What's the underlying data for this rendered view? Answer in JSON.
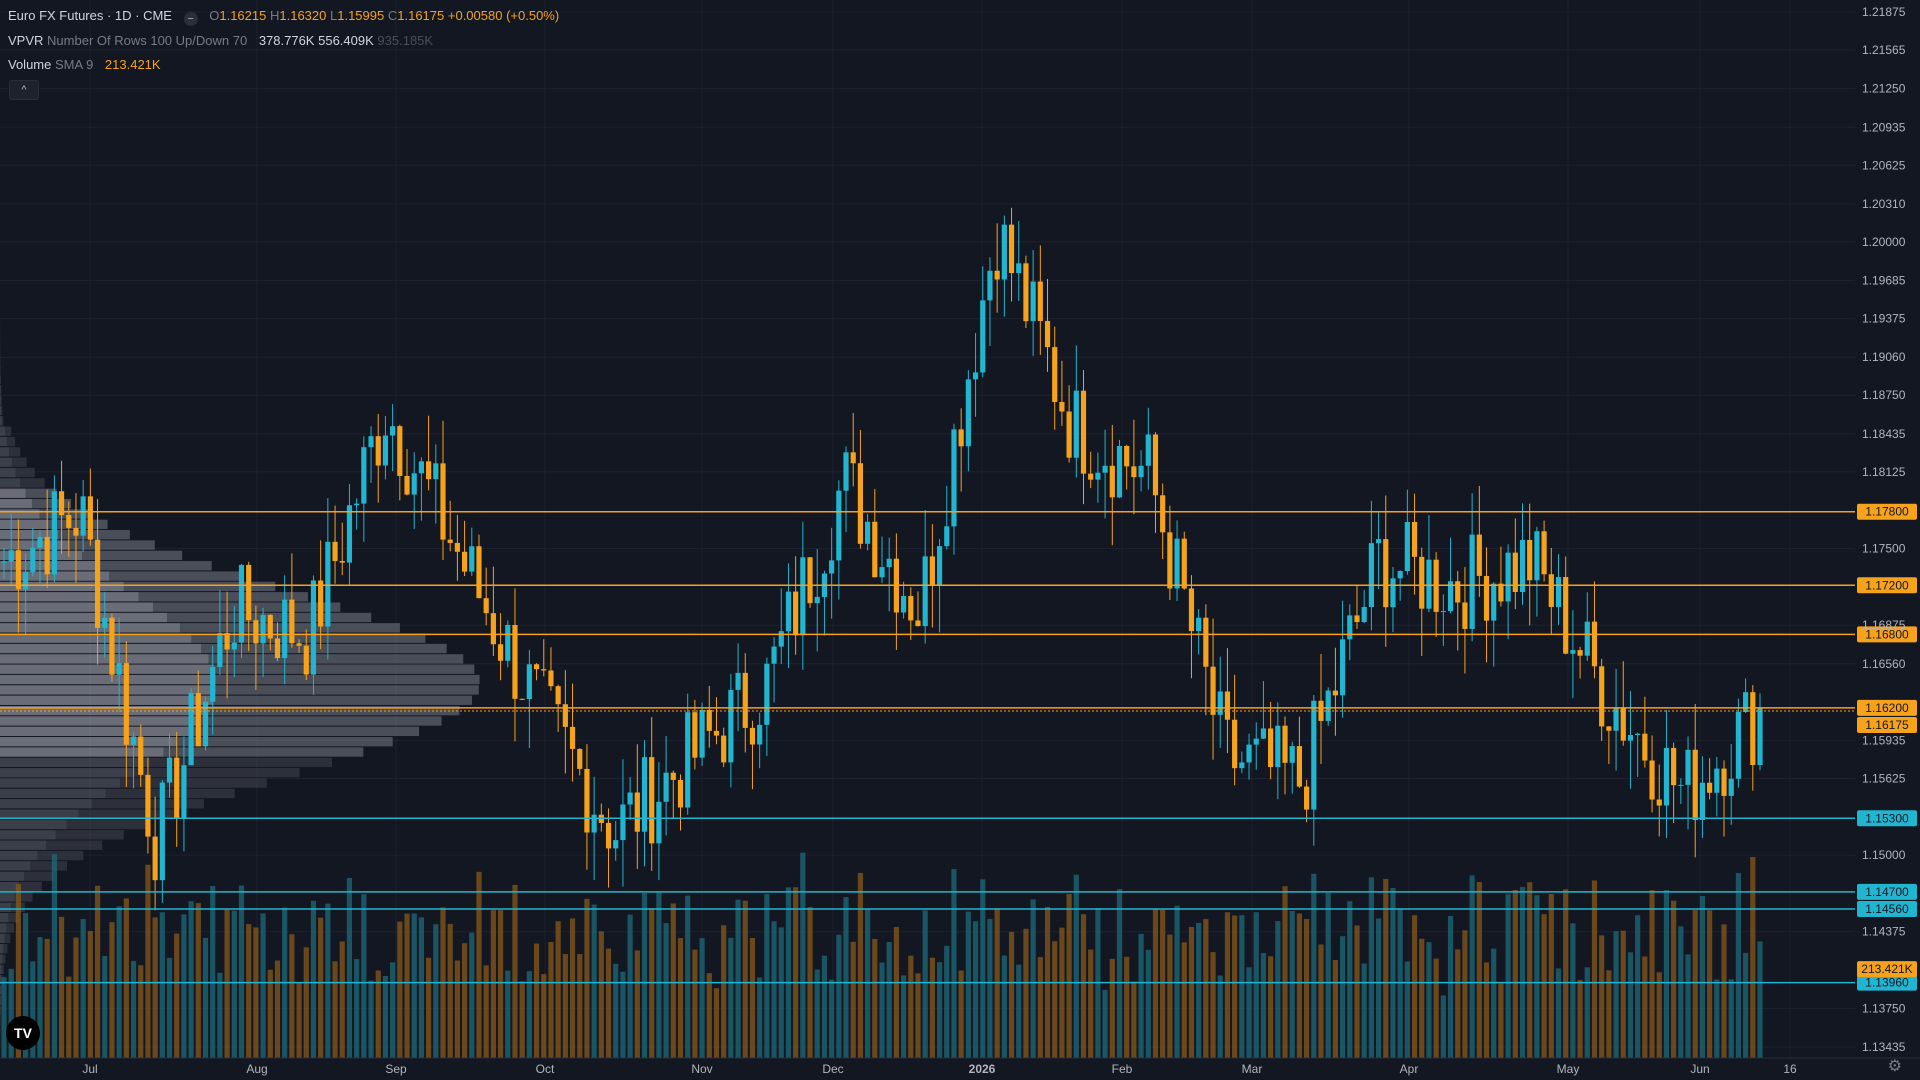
{
  "header": {
    "symbol": "Euro FX Futures · 1D · CME",
    "ohlc": {
      "o_label": "O",
      "o": "1.16215",
      "h_label": "H",
      "h": "1.16320",
      "l_label": "L",
      "l": "1.15995",
      "c_label": "C",
      "c": "1.16175",
      "change": "+0.00580 (+0.50%)"
    },
    "dot_glyph": "−",
    "vpvr_label": "VPVR",
    "vpvr_params": "Number Of Rows 100 Up/Down 70",
    "vpvr_up": "378.776K",
    "vpvr_down": "556.409K",
    "vpvr_total": "935.185K",
    "volume_label": "Volume",
    "volume_params": "SMA 9",
    "volume_value": "213.421K",
    "collapse_glyph": "^",
    "logo_text": "TV"
  },
  "colors": {
    "background": "#131722",
    "up": "#22b5cf",
    "down": "#f7a21b",
    "text": "#d1d4dc",
    "muted": "#787b86",
    "grid": "#1e2230"
  },
  "chart_data": {
    "type": "candlestick",
    "ylim": [
      1.13435,
      1.21875
    ],
    "y_ticks": [
      "1.21875",
      "1.21565",
      "1.21250",
      "1.20935",
      "1.20625",
      "1.20310",
      "1.20000",
      "1.19685",
      "1.19375",
      "1.19060",
      "1.18750",
      "1.18435",
      "1.18125",
      "1.17500",
      "1.16875",
      "1.16560",
      "1.15935",
      "1.15625",
      "1.15000",
      "1.14375",
      "1.13750",
      "1.13435"
    ],
    "x_ticks": [
      "Jul",
      "Aug",
      "Sep",
      "Oct",
      "Nov",
      "Dec",
      "2026",
      "Feb",
      "Mar",
      "Apr",
      "May",
      "Jun",
      "16"
    ],
    "last_close": 1.16175,
    "horizontal_lines": [
      {
        "price": 1.178,
        "label": "1.17800",
        "color": "#f7a21b"
      },
      {
        "price": 1.172,
        "label": "1.17200",
        "color": "#f7a21b"
      },
      {
        "price": 1.168,
        "label": "1.16800",
        "color": "#f7a21b"
      },
      {
        "price": 1.162,
        "label": "1.16200",
        "color": "#f7a21b"
      },
      {
        "price": 1.153,
        "label": "1.15300",
        "color": "#22b5cf"
      },
      {
        "price": 1.147,
        "label": "1.14700",
        "color": "#22b5cf"
      },
      {
        "price": 1.1456,
        "label": "1.14560",
        "color": "#22b5cf"
      },
      {
        "price": 1.1396,
        "label": "1.13960",
        "color": "#22b5cf"
      }
    ],
    "price_labels": [
      {
        "label": "1.16175",
        "color": "#f7a21b"
      },
      {
        "label": "213.421K",
        "color": "#f7a21b"
      }
    ],
    "month_keyframes": [
      {
        "label": "Jul",
        "close": 1.174
      },
      {
        "label": "",
        "close": 1.178
      },
      {
        "label": "Aug",
        "close": 1.151
      },
      {
        "label": "",
        "close": 1.17
      },
      {
        "label": "Sep",
        "close": 1.168
      },
      {
        "label": "",
        "close": 1.1865
      },
      {
        "label": "Oct",
        "close": 1.174
      },
      {
        "label": "",
        "close": 1.162
      },
      {
        "label": "Nov",
        "close": 1.152
      },
      {
        "label": "",
        "close": 1.158
      },
      {
        "label": "Dec",
        "close": 1.164
      },
      {
        "label": "",
        "close": 1.1805
      },
      {
        "label": "2026",
        "close": 1.17
      },
      {
        "label": "",
        "close": 1.201
      },
      {
        "label": "Feb",
        "close": 1.185
      },
      {
        "label": "",
        "close": 1.181
      },
      {
        "label": "Mar",
        "close": 1.158
      },
      {
        "label": "",
        "close": 1.156
      },
      {
        "label": "Apr",
        "close": 1.174
      },
      {
        "label": "",
        "close": 1.172
      },
      {
        "label": "May",
        "close": 1.174
      },
      {
        "label": "",
        "close": 1.163
      },
      {
        "label": "Jun",
        "close": 1.155
      },
      {
        "label": "",
        "close": 1.16175
      }
    ]
  }
}
